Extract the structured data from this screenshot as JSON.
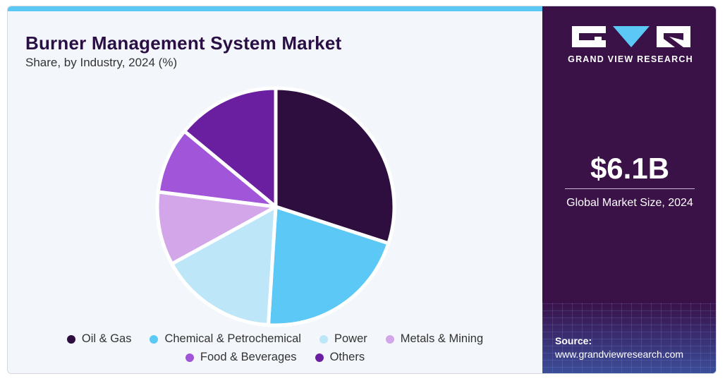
{
  "header": {
    "title": "Burner Management System Market",
    "subtitle": "Share, by Industry, 2024 (%)"
  },
  "chart_data": {
    "type": "pie",
    "title": "Burner Management System Market",
    "subtitle": "Share, by Industry, 2024 (%)",
    "categories": [
      "Oil & Gas",
      "Chemical & Petrochemical",
      "Power",
      "Metals & Mining",
      "Food & Beverages",
      "Others"
    ],
    "values": [
      30,
      21,
      16,
      10,
      9,
      14
    ],
    "colors": [
      "#2d0e3f",
      "#5bc8f5",
      "#bde6f9",
      "#d2a6e8",
      "#a155d9",
      "#6a1fa0"
    ],
    "start_angle_deg": 0,
    "direction": "clockwise",
    "legend_position": "bottom"
  },
  "legend": {
    "rows": [
      [
        {
          "label": "Oil & Gas",
          "color": "#2d0e3f"
        },
        {
          "label": "Chemical & Petrochemical",
          "color": "#5bc8f5"
        },
        {
          "label": "Power",
          "color": "#bde6f9"
        },
        {
          "label": "Metals & Mining",
          "color": "#d2a6e8"
        }
      ],
      [
        {
          "label": "Food & Beverages",
          "color": "#a155d9"
        },
        {
          "label": "Others",
          "color": "#6a1fa0"
        }
      ]
    ]
  },
  "sidebar": {
    "brand": "GRAND VIEW RESEARCH",
    "market_size": "$6.1B",
    "market_size_label": "Global Market Size, 2024",
    "source_label": "Source:",
    "source_url": "www.grandviewresearch.com"
  },
  "theme": {
    "accent": "#5bc8f5",
    "panel_dark": "#3a1248"
  }
}
